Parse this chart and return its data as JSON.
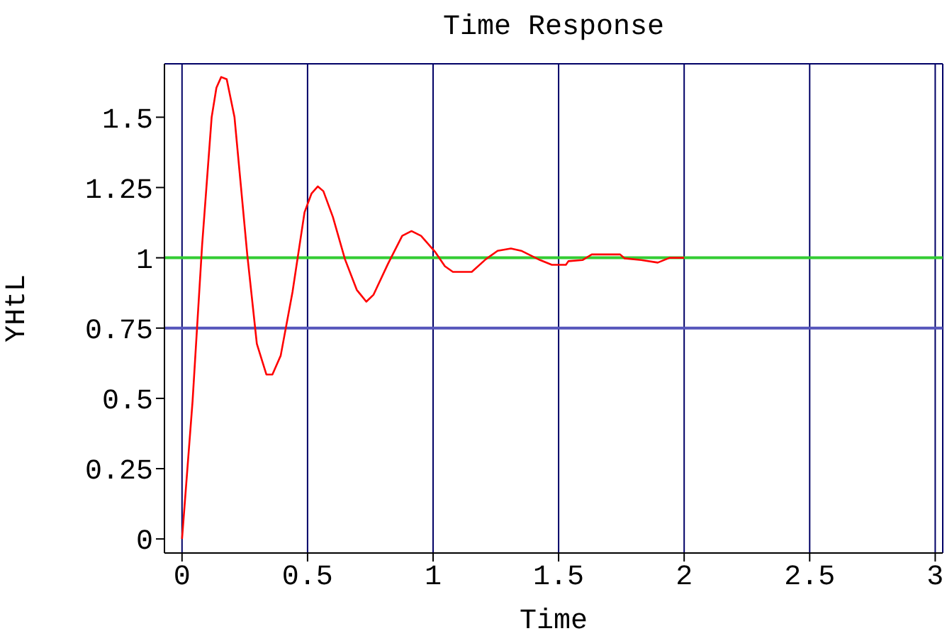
{
  "chart_data": {
    "type": "line",
    "title": "Time  Response",
    "xlabel": "Time",
    "ylabel": "YHtL",
    "xlim": [
      -0.07,
      3.03
    ],
    "ylim": [
      -0.05,
      1.69
    ],
    "xticks": [
      0,
      0.5,
      1,
      1.5,
      2,
      2.5,
      3
    ],
    "yticks": [
      0,
      0.25,
      0.5,
      0.75,
      1,
      1.25,
      1.5
    ],
    "grid": true,
    "legend": false,
    "marker": "none",
    "line_style": "solid",
    "ref_lines": [
      {
        "axis": "y",
        "value": 1,
        "color": "#33cc33"
      },
      {
        "axis": "y",
        "value": 0.75,
        "color": "#5555bb"
      }
    ],
    "series": [
      {
        "color": "#ff0000",
        "x": [
          0,
          0.042,
          0.08,
          0.118,
          0.137,
          0.156,
          0.178,
          0.209,
          0.26,
          0.298,
          0.336,
          0.36,
          0.393,
          0.44,
          0.488,
          0.516,
          0.541,
          0.563,
          0.601,
          0.649,
          0.696,
          0.734,
          0.763,
          0.82,
          0.877,
          0.914,
          0.952,
          1.009,
          1.047,
          1.079,
          1.154,
          1.21,
          1.257,
          1.31,
          1.351,
          1.426,
          1.473,
          1.529,
          1.539,
          1.595,
          1.632,
          1.745,
          1.763,
          1.829,
          1.895,
          1.942,
          2.0
        ],
        "values": [
          0,
          0.49,
          1.045,
          1.5,
          1.605,
          1.643,
          1.635,
          1.5,
          1.01,
          0.694,
          0.585,
          0.585,
          0.652,
          0.878,
          1.162,
          1.229,
          1.254,
          1.237,
          1.145,
          0.995,
          0.886,
          0.844,
          0.869,
          0.978,
          1.078,
          1.095,
          1.078,
          1.02,
          0.97,
          0.95,
          0.95,
          0.995,
          1.025,
          1.033,
          1.025,
          0.992,
          0.975,
          0.975,
          0.988,
          0.992,
          1.012,
          1.012,
          0.998,
          0.992,
          0.983,
          1.0,
          1.0
        ]
      }
    ]
  }
}
